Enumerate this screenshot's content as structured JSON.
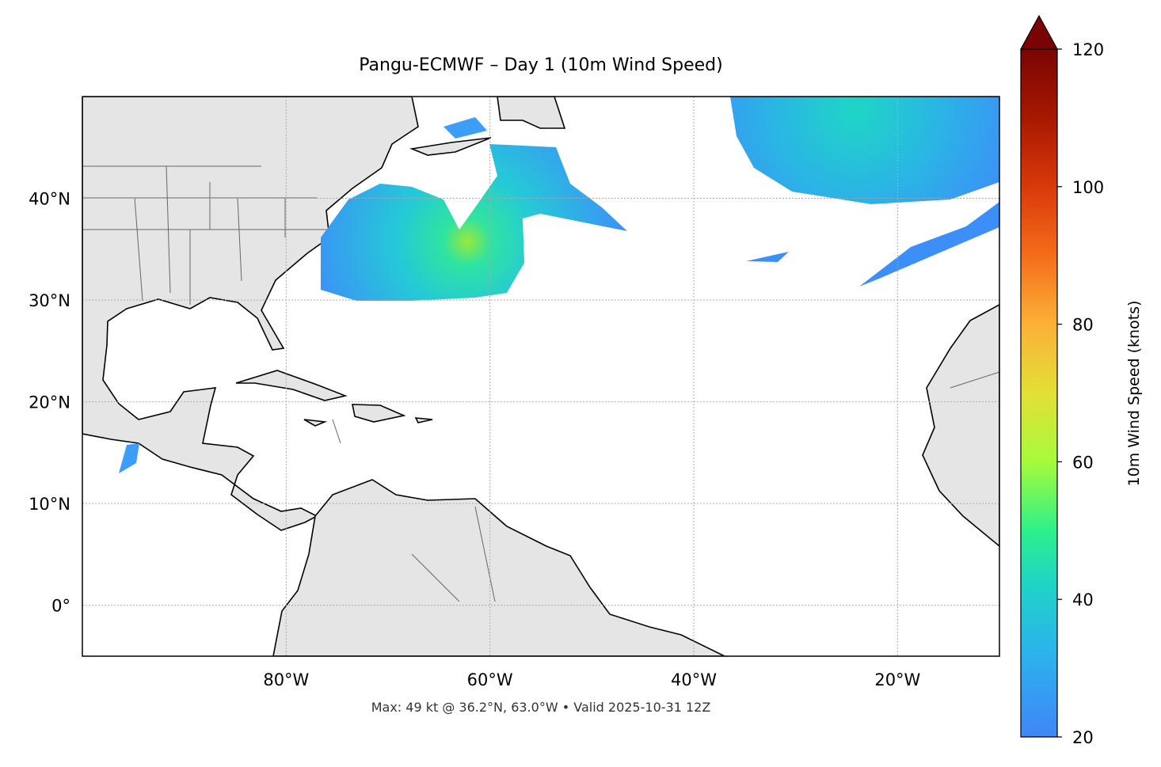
{
  "title": "Pangu-ECMWF – Day 1 (10m Wind Speed)",
  "footer": "Max: 49 kt @ 36.2°N, 63.0°W • Valid 2025-10-31 12Z",
  "map": {
    "lon_range": [
      -100,
      -10
    ],
    "lat_range": [
      -5,
      50
    ],
    "x_ticks": [
      {
        "lon": -80,
        "label": "80°W"
      },
      {
        "lon": -60,
        "label": "60°W"
      },
      {
        "lon": -40,
        "label": "40°W"
      },
      {
        "lon": -20,
        "label": "20°W"
      }
    ],
    "y_ticks": [
      {
        "lat": 40,
        "label": "40°N"
      },
      {
        "lat": 30,
        "label": "30°N"
      },
      {
        "lat": 20,
        "label": "20°N"
      },
      {
        "lat": 10,
        "label": "10°N"
      },
      {
        "lat": 0,
        "label": "0°"
      }
    ],
    "land_color": "#e5e5e5",
    "max_wind": {
      "value_kt": 49,
      "lat": 36.2,
      "lon": -63.0
    }
  },
  "colorbar": {
    "label": "10m Wind Speed (knots)",
    "range": [
      20,
      120
    ],
    "ticks": [
      {
        "v": 20,
        "label": "20"
      },
      {
        "v": 40,
        "label": "40"
      },
      {
        "v": 60,
        "label": "60"
      },
      {
        "v": 80,
        "label": "80"
      },
      {
        "v": 100,
        "label": "100"
      },
      {
        "v": 120,
        "label": "120"
      }
    ],
    "extend": "max",
    "extend_color": "#7a0403"
  }
}
